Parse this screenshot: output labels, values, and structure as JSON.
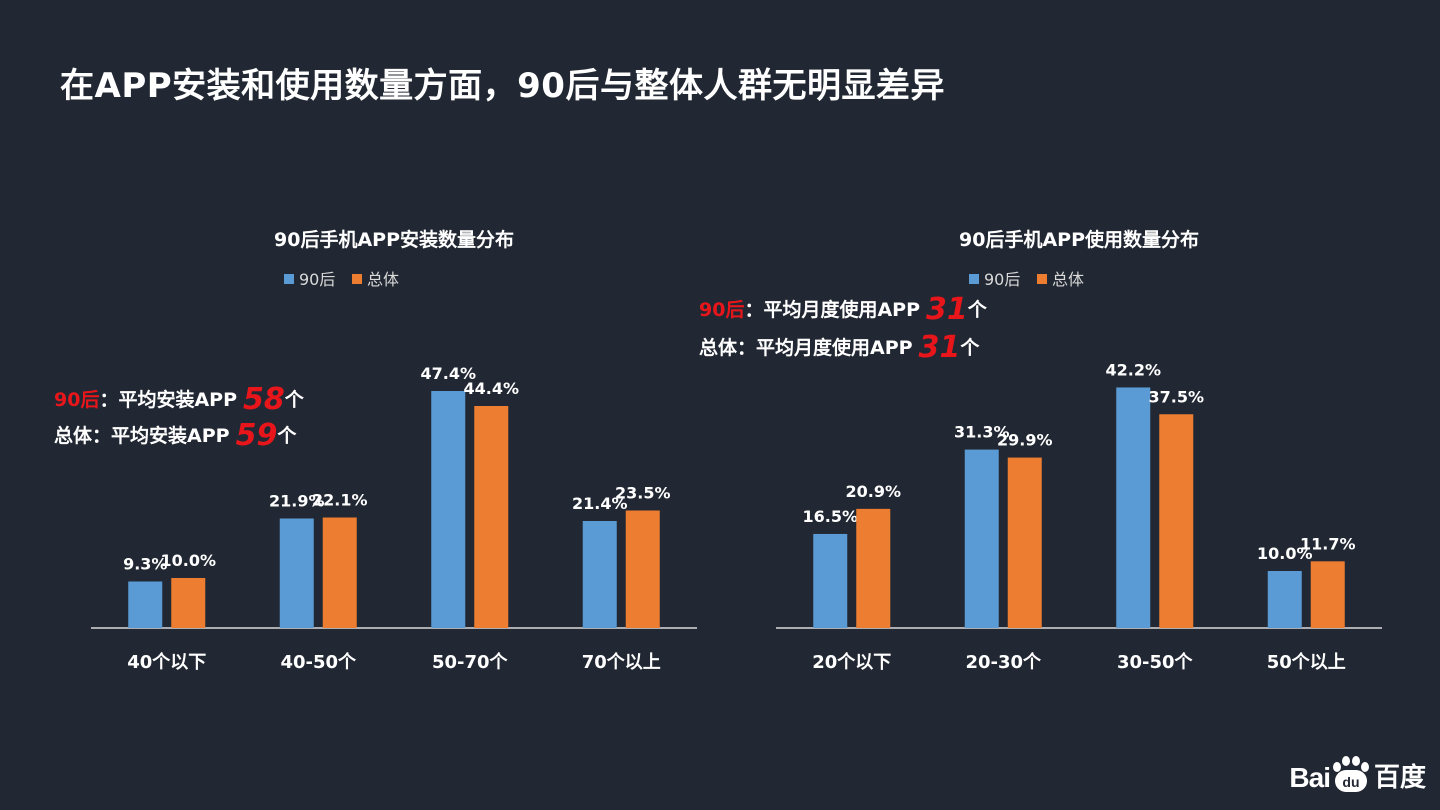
{
  "title": "在APP安装和使用数量方面，90后与整体人群无明显差异",
  "colors": {
    "series_a": "#5b9bd5",
    "series_b": "#ed7d31",
    "highlight": "#e8161b",
    "background": "#222833",
    "axis": "#d9d9d9"
  },
  "chart_data": [
    {
      "type": "bar",
      "title": "90后手机APP安装数量分布",
      "categories": [
        "40个以下",
        "40-50个",
        "50-70个",
        "70个以上"
      ],
      "series": [
        {
          "name": "90后",
          "values": [
            9.3,
            21.9,
            47.4,
            21.4
          ],
          "labels": [
            "9.3%",
            "21.9%",
            "47.4%",
            "21.4%"
          ]
        },
        {
          "name": "总体",
          "values": [
            10.0,
            22.1,
            44.4,
            23.5
          ],
          "labels": [
            "10.0%",
            "22.1%",
            "44.4%",
            "23.5%"
          ]
        }
      ],
      "ylim": [
        0,
        50
      ],
      "legend": "top-center",
      "grid": false
    },
    {
      "type": "bar",
      "title": "90后手机APP使用数量分布",
      "categories": [
        "20个以下",
        "20-30个",
        "30-50个",
        "50个以上"
      ],
      "series": [
        {
          "name": "90后",
          "values": [
            16.5,
            31.3,
            42.2,
            10.0
          ],
          "labels": [
            "16.5%",
            "31.3%",
            "42.2%",
            "10.0%"
          ]
        },
        {
          "name": "总体",
          "values": [
            20.9,
            29.9,
            37.5,
            11.7
          ],
          "labels": [
            "20.9%",
            "29.9%",
            "37.5%",
            "11.7%"
          ]
        }
      ],
      "ylim": [
        0,
        50
      ],
      "legend": "top-center",
      "grid": false
    }
  ],
  "annotations": {
    "install": [
      {
        "label": "90后",
        "text": "：平均安装APP",
        "value": "58",
        "unit": "个"
      },
      {
        "label": "总体",
        "text": "：平均安装APP",
        "value": "59",
        "unit": "个"
      }
    ],
    "usage": [
      {
        "label": "90后",
        "text": "：平均月度使用APP",
        "value": "31",
        "unit": "个"
      },
      {
        "label": "总体",
        "text": "：平均月度使用APP",
        "value": "31",
        "unit": "个"
      }
    ]
  },
  "logo": {
    "brand": "Bai",
    "paw_text": "du",
    "name": "百度"
  }
}
